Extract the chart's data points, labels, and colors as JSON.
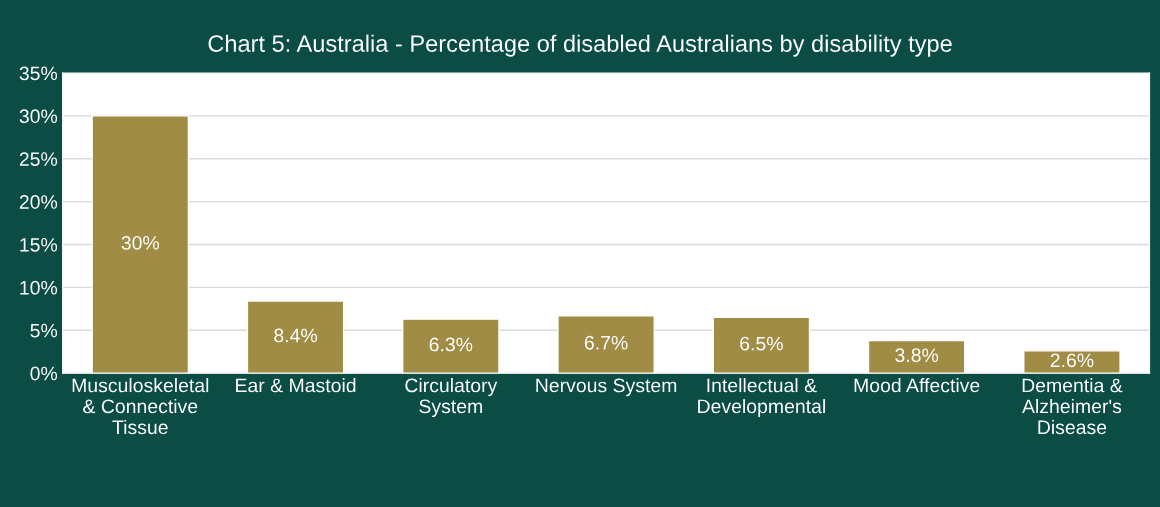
{
  "chart_data": {
    "type": "bar",
    "title": "Chart 5: Australia - Percentage of disabled Australians by disability type",
    "categories": [
      "Musculoskeletal & Connective Tissue",
      "Ear & Mastoid",
      "Circulatory System",
      "Nervous System",
      "Intellectual & Developmental",
      "Mood Affective",
      "Dementia & Alzheimer's Disease"
    ],
    "values": [
      30,
      8.4,
      6.3,
      6.7,
      6.5,
      3.8,
      2.6
    ],
    "value_labels": [
      "30%",
      "8.4%",
      "6.3%",
      "6.7%",
      "6.5%",
      "3.8%",
      "2.6%"
    ],
    "color": "#a08c45",
    "ylim": [
      0,
      35
    ],
    "yticks": [
      {
        "value": 0,
        "label": "0%"
      },
      {
        "value": 5,
        "label": "5%"
      },
      {
        "value": 10,
        "label": "10%"
      },
      {
        "value": 15,
        "label": "15%"
      },
      {
        "value": 20,
        "label": "20%"
      },
      {
        "value": 25,
        "label": "25%"
      },
      {
        "value": 30,
        "label": "30%"
      },
      {
        "value": 35,
        "label": "35%"
      }
    ],
    "grid": "y",
    "legend": false
  }
}
